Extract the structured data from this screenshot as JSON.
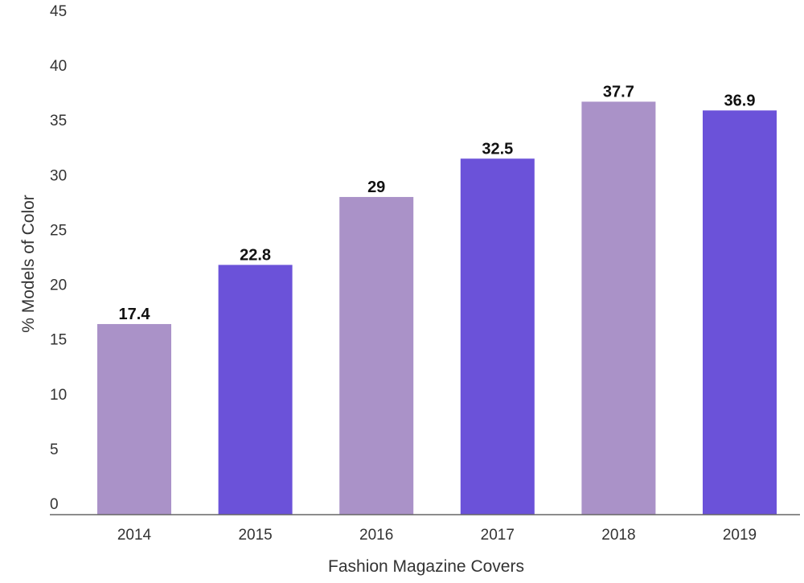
{
  "chart_data": {
    "type": "bar",
    "categories": [
      "2014",
      "2015",
      "2016",
      "2017",
      "2018",
      "2019"
    ],
    "values": [
      17.4,
      22.8,
      29,
      32.5,
      37.7,
      36.9
    ],
    "data_labels": [
      "17.4",
      "22.8",
      "29",
      "32.5",
      "37.7",
      "36.9"
    ],
    "title": "",
    "xlabel": "Fashion Magazine Covers",
    "ylabel": "% Models of Color",
    "ylim": [
      0,
      45
    ],
    "yticks": [
      "0",
      "5",
      "10",
      "15",
      "20",
      "25",
      "30",
      "35",
      "40",
      "45"
    ],
    "grid": false,
    "legend": "none",
    "colors": [
      "#aa92c8",
      "#6b52d9",
      "#aa92c8",
      "#6b52d9",
      "#aa92c8",
      "#6b52d9"
    ]
  }
}
